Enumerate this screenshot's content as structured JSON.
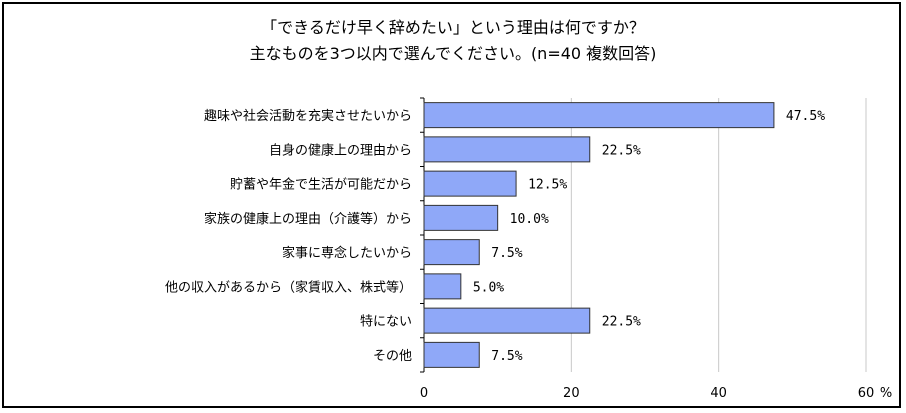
{
  "chart_data": {
    "type": "bar",
    "orientation": "horizontal",
    "title": "「できるだけ早く辞めたい」という理由は何ですか？\n主なものを3つ以内で選んでください。(n=40 複数回答)",
    "categories": [
      "趣味や社会活動を充実させたいから",
      "自身の健康上の理由から",
      "貯蓄や年金で生活が可能だから",
      "家族の健康上の理由（介護等）から",
      "家事に専念したいから",
      "他の収入があるから（家賃収入、株式等）",
      "特にない",
      "その他"
    ],
    "values": [
      47.5,
      22.5,
      12.5,
      10.0,
      7.5,
      5.0,
      22.5,
      7.5
    ],
    "data_labels": [
      "47.5%",
      "22.5%",
      "12.5%",
      "10.0%",
      "7.5%",
      "5.0%",
      "22.5%",
      "7.5%"
    ],
    "xlim": [
      0,
      60
    ],
    "xticks": [
      0,
      20,
      40,
      60
    ],
    "xtick_labels": [
      "0",
      "20",
      "40",
      "60"
    ],
    "xunit": "%",
    "grid": true,
    "bar_color": "#8fa8f8",
    "bar_edge_color": "#333333",
    "grid_color": "#c8c8c8"
  }
}
